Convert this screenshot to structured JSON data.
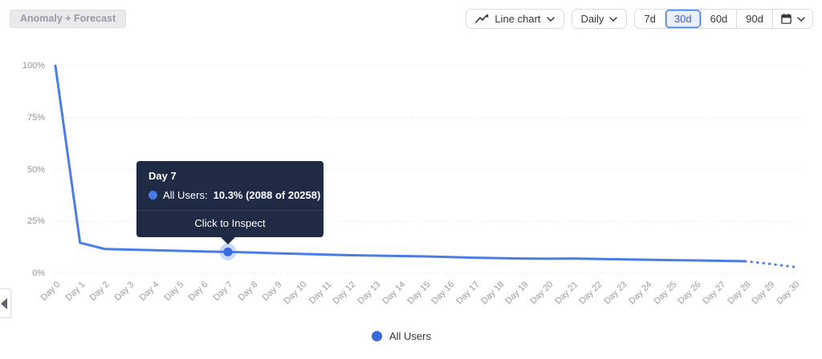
{
  "toolbar": {
    "anomaly_forecast_label": "Anomaly + Forecast",
    "chart_type_label": "Line chart",
    "interval_label": "Daily",
    "ranges": [
      "7d",
      "30d",
      "60d",
      "90d"
    ],
    "selected_range": "30d"
  },
  "tooltip": {
    "title": "Day 7",
    "series_label": "All Users:",
    "value_text": "10.3% (2088 of 20258)",
    "action": "Click to Inspect"
  },
  "legend": {
    "label": "All Users"
  },
  "colors": {
    "line": "#4a7de8",
    "point": "#3a68e0",
    "grid": "#e0e0e0",
    "tooltip_bg": "#1f2a45",
    "selected_range_text": "#3c5bd2",
    "selected_range_bg": "#e9effc"
  },
  "chart_data": {
    "type": "line",
    "title": "",
    "xlabel": "",
    "ylabel": "",
    "categories": [
      "Day 0",
      "Day 1",
      "Day 2",
      "Day 3",
      "Day 4",
      "Day 5",
      "Day 6",
      "Day 7",
      "Day 8",
      "Day 9",
      "Day 10",
      "Day 11",
      "Day 12",
      "Day 13",
      "Day 14",
      "Day 15",
      "Day 16",
      "Day 17",
      "Day 18",
      "Day 19",
      "Day 20",
      "Day 21",
      "Day 22",
      "Day 23",
      "Day 24",
      "Day 25",
      "Day 26",
      "Day 27",
      "Day 28",
      "Day 29",
      "Day 30"
    ],
    "series": [
      {
        "name": "All Users",
        "values": [
          100,
          14.7,
          11.7,
          11.4,
          11.1,
          10.8,
          10.5,
          10.3,
          10.0,
          9.6,
          9.3,
          9.0,
          8.7,
          8.5,
          8.3,
          8.1,
          7.8,
          7.5,
          7.3,
          7.1,
          7.0,
          7.1,
          6.9,
          6.7,
          6.5,
          6.3,
          6.2,
          6.0,
          5.8,
          4.5,
          3.0
        ]
      }
    ],
    "forecast_start_index": 28,
    "highlight_index": 7,
    "highlight": {
      "day": "Day 7",
      "pct": 10.3,
      "count": 2088,
      "total": 20258
    },
    "ylim": [
      0,
      100
    ],
    "yticks": [
      {
        "label": "100%",
        "value": 100
      },
      {
        "label": "75%",
        "value": 75
      },
      {
        "label": "50%",
        "value": 50
      },
      {
        "label": "25%",
        "value": 25
      },
      {
        "label": "0%",
        "value": 0
      }
    ],
    "grid": "dotted-horizontal",
    "legend_position": "bottom-center"
  }
}
